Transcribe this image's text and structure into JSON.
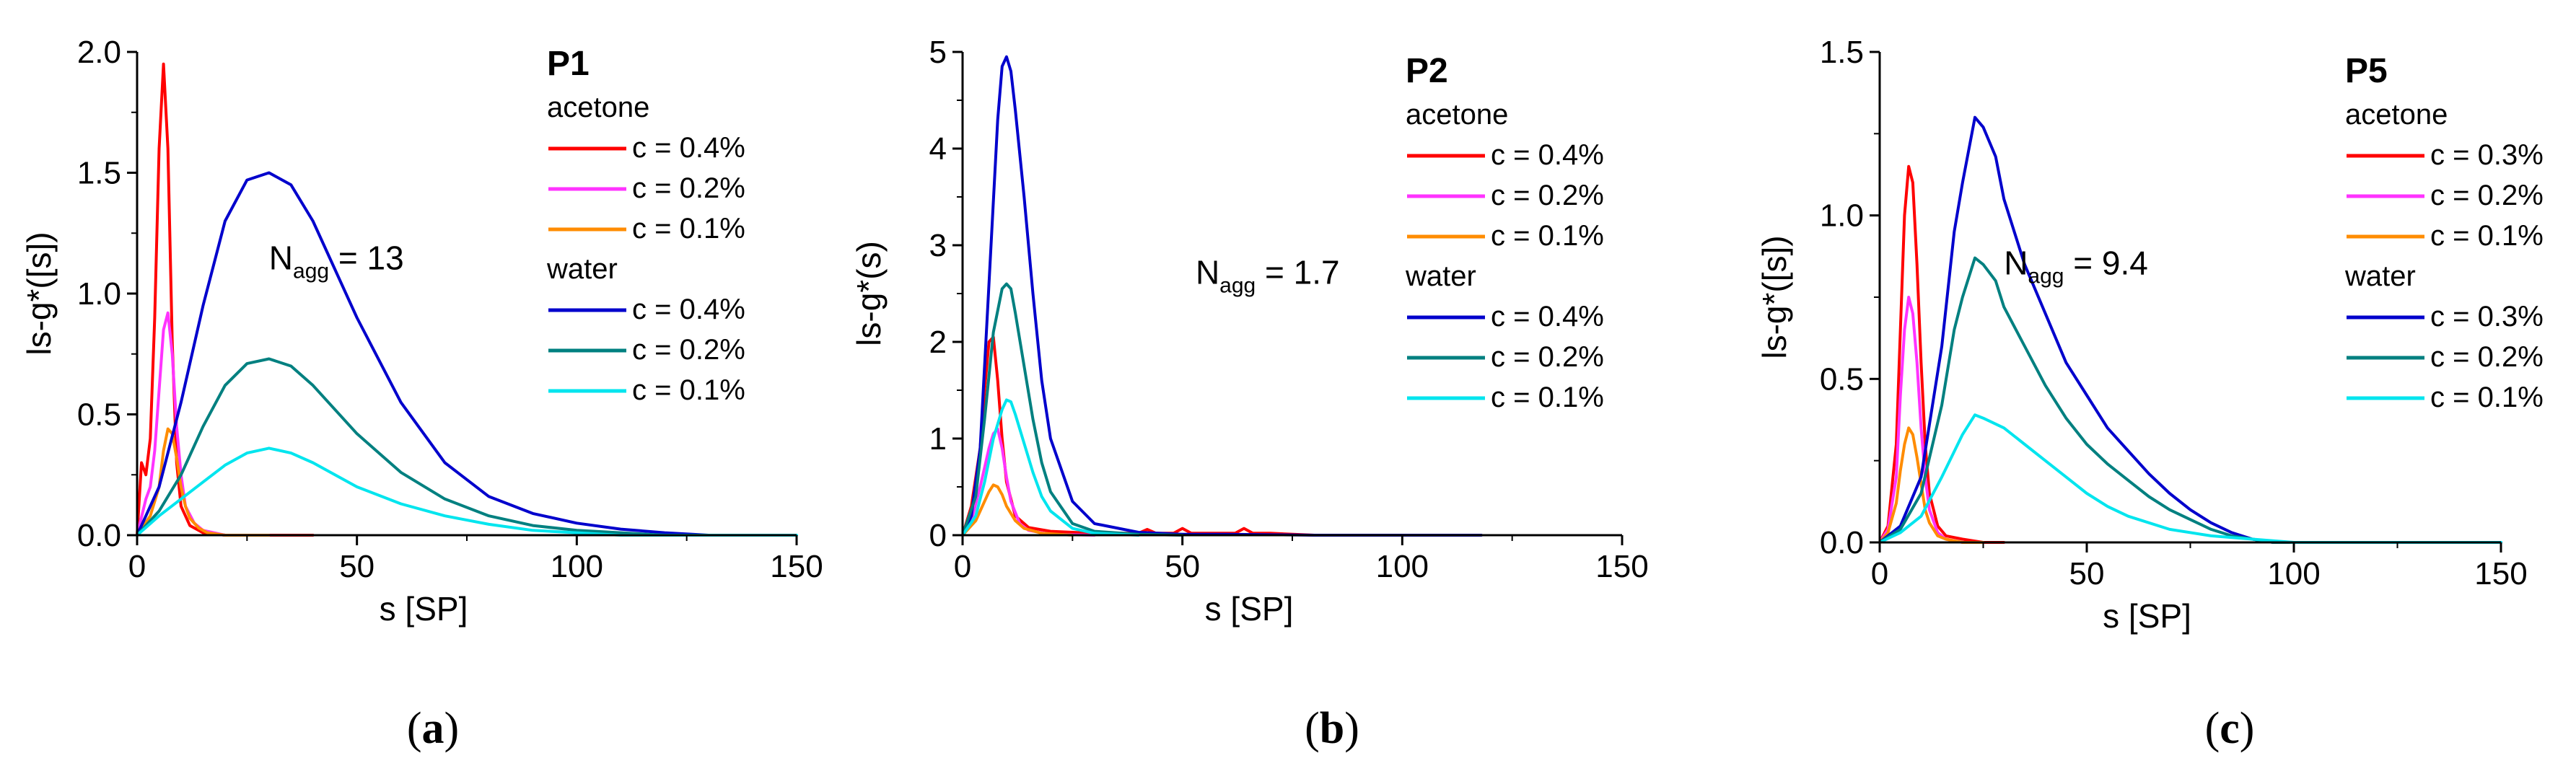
{
  "chart_data": [
    {
      "type": "line",
      "panel_label": "(a)",
      "panel_label_parts": [
        "(",
        "a",
        ")"
      ],
      "title": "P1",
      "xlabel": "s [SP]",
      "ylabel": "ls-g*([s])",
      "xlim": [
        0,
        150
      ],
      "ylim": [
        0,
        2.0
      ],
      "x_ticks": [
        0,
        50,
        100,
        150
      ],
      "x_tick_labels": [
        "0",
        "50",
        "100",
        "150"
      ],
      "y_ticks": [
        0,
        0.5,
        1.0,
        1.5,
        2.0
      ],
      "y_tick_labels": [
        "0.0",
        "0.5",
        "1.0",
        "1.5",
        "2.0"
      ],
      "annotation": {
        "main": "N",
        "sub": "agg",
        "rest": " = 13",
        "x": 30,
        "y": 1.1
      },
      "legend_groups": [
        {
          "title": "acetone",
          "series": [
            0,
            1,
            2
          ]
        },
        {
          "title": "water",
          "series": [
            3,
            4,
            5
          ]
        }
      ],
      "series": [
        {
          "name": "c = 0.4%",
          "color": "#ff0000",
          "x": [
            0,
            1,
            2,
            3,
            4,
            5,
            6,
            7,
            8,
            9,
            10,
            12,
            15,
            20,
            30,
            40
          ],
          "y": [
            0,
            0.3,
            0.25,
            0.4,
            0.9,
            1.6,
            1.95,
            1.6,
            0.8,
            0.3,
            0.12,
            0.04,
            0.01,
            0,
            0,
            0
          ]
        },
        {
          "name": "c = 0.2%",
          "color": "#ff33ff",
          "x": [
            0,
            2,
            3,
            4,
            5,
            6,
            7,
            8,
            9,
            10,
            11,
            13,
            15,
            20,
            30
          ],
          "y": [
            0,
            0.15,
            0.2,
            0.35,
            0.6,
            0.85,
            0.92,
            0.75,
            0.45,
            0.25,
            0.12,
            0.05,
            0.02,
            0,
            0
          ]
        },
        {
          "name": "c = 0.1%",
          "color": "#ff8c00",
          "x": [
            0,
            3,
            5,
            6,
            7,
            8,
            9,
            10,
            11,
            12,
            14,
            16,
            20,
            30
          ],
          "y": [
            0,
            0.08,
            0.2,
            0.35,
            0.44,
            0.42,
            0.32,
            0.2,
            0.12,
            0.07,
            0.03,
            0.01,
            0,
            0
          ]
        },
        {
          "name": "c = 0.4%",
          "color": "#0000cc",
          "x": [
            0,
            5,
            10,
            15,
            20,
            25,
            30,
            35,
            40,
            45,
            50,
            60,
            70,
            80,
            90,
            100,
            110,
            120,
            130
          ],
          "y": [
            0,
            0.2,
            0.55,
            0.95,
            1.3,
            1.47,
            1.5,
            1.45,
            1.3,
            1.1,
            0.9,
            0.55,
            0.3,
            0.16,
            0.09,
            0.05,
            0.025,
            0.01,
            0
          ]
        },
        {
          "name": "c = 0.2%",
          "color": "#008080",
          "x": [
            0,
            5,
            10,
            15,
            20,
            25,
            30,
            35,
            40,
            45,
            50,
            60,
            70,
            80,
            90,
            100,
            110,
            120
          ],
          "y": [
            0,
            0.1,
            0.25,
            0.45,
            0.62,
            0.71,
            0.73,
            0.7,
            0.62,
            0.52,
            0.42,
            0.26,
            0.15,
            0.08,
            0.04,
            0.02,
            0.01,
            0
          ]
        },
        {
          "name": "c = 0.1%",
          "color": "#00e5ee",
          "x": [
            0,
            5,
            10,
            15,
            20,
            25,
            30,
            35,
            40,
            50,
            60,
            70,
            80,
            90,
            100,
            110,
            150
          ],
          "y": [
            0,
            0.08,
            0.15,
            0.22,
            0.29,
            0.34,
            0.36,
            0.34,
            0.3,
            0.2,
            0.13,
            0.08,
            0.045,
            0.02,
            0.01,
            0,
            0
          ]
        }
      ]
    },
    {
      "type": "line",
      "panel_label": "(b)",
      "panel_label_parts": [
        "(",
        "b",
        ")"
      ],
      "title": "P2",
      "xlabel": "s [SP]",
      "ylabel": "ls-g*(s)",
      "xlim": [
        0,
        150
      ],
      "ylim": [
        0,
        5
      ],
      "x_ticks": [
        0,
        50,
        100,
        150
      ],
      "x_tick_labels": [
        "0",
        "50",
        "100",
        "150"
      ],
      "y_ticks": [
        0,
        1,
        2,
        3,
        4,
        5
      ],
      "y_tick_labels": [
        "0",
        "1",
        "2",
        "3",
        "4",
        "5"
      ],
      "annotation": {
        "main": "N",
        "sub": "agg",
        "rest": " = 1.7",
        "x": 53,
        "y": 2.6
      },
      "legend_groups": [
        {
          "title": "acetone",
          "series": [
            0,
            1,
            2
          ]
        },
        {
          "title": "water",
          "series": [
            3,
            4,
            5
          ]
        }
      ],
      "series": [
        {
          "name": "c = 0.4%",
          "color": "#ff0000",
          "x": [
            0,
            2,
            4,
            5,
            6,
            7,
            8,
            9,
            10,
            12,
            15,
            20,
            25,
            30,
            40,
            42,
            44,
            48,
            50,
            52,
            55,
            62,
            64,
            66,
            70,
            80
          ],
          "y": [
            0,
            0.3,
            0.9,
            1.5,
            2.0,
            2.05,
            1.6,
            1.0,
            0.55,
            0.2,
            0.08,
            0.04,
            0.03,
            0.02,
            0.02,
            0.06,
            0.02,
            0.02,
            0.07,
            0.02,
            0.02,
            0.02,
            0.07,
            0.02,
            0.02,
            0
          ]
        },
        {
          "name": "c = 0.2%",
          "color": "#ff33ff",
          "x": [
            0,
            2,
            4,
            6,
            7,
            8,
            9,
            10,
            11,
            13,
            15,
            20,
            30
          ],
          "y": [
            0,
            0.15,
            0.5,
            0.9,
            1.05,
            1.1,
            0.9,
            0.6,
            0.35,
            0.12,
            0.05,
            0.01,
            0
          ]
        },
        {
          "name": "c = 0.1%",
          "color": "#ff8c00",
          "x": [
            0,
            3,
            5,
            6,
            7,
            8,
            9,
            10,
            12,
            14,
            18,
            25
          ],
          "y": [
            0,
            0.15,
            0.35,
            0.45,
            0.52,
            0.5,
            0.42,
            0.3,
            0.15,
            0.07,
            0.02,
            0
          ]
        },
        {
          "name": "c = 0.4%",
          "color": "#0000cc",
          "x": [
            0,
            2,
            4,
            6,
            8,
            9,
            10,
            11,
            12,
            14,
            16,
            18,
            20,
            25,
            30,
            40,
            50,
            60,
            80,
            100,
            118
          ],
          "y": [
            0,
            0.2,
            0.9,
            2.6,
            4.3,
            4.85,
            4.95,
            4.8,
            4.4,
            3.5,
            2.5,
            1.6,
            1.0,
            0.35,
            0.12,
            0.03,
            0.01,
            0.01,
            0,
            0,
            0
          ]
        },
        {
          "name": "c = 0.2%",
          "color": "#008080",
          "x": [
            0,
            3,
            5,
            7,
            9,
            10,
            11,
            12,
            14,
            16,
            18,
            20,
            25,
            30,
            40,
            50
          ],
          "y": [
            0,
            0.4,
            1.2,
            2.1,
            2.55,
            2.6,
            2.55,
            2.3,
            1.75,
            1.2,
            0.75,
            0.45,
            0.12,
            0.04,
            0.01,
            0
          ]
        },
        {
          "name": "c = 0.1%",
          "color": "#00e5ee",
          "x": [
            0,
            3,
            5,
            7,
            9,
            10,
            11,
            12,
            14,
            16,
            18,
            20,
            25,
            30,
            40
          ],
          "y": [
            0,
            0.2,
            0.55,
            1.0,
            1.3,
            1.4,
            1.38,
            1.25,
            0.95,
            0.65,
            0.4,
            0.25,
            0.07,
            0.02,
            0
          ]
        }
      ]
    },
    {
      "type": "line",
      "panel_label": "(c)",
      "panel_label_parts": [
        "(",
        "c",
        ")"
      ],
      "title": "P5",
      "xlabel": "s [SP]",
      "ylabel": "ls-g*([s])",
      "xlim": [
        0,
        150
      ],
      "ylim": [
        0,
        1.5
      ],
      "x_ticks": [
        0,
        50,
        100,
        150
      ],
      "x_tick_labels": [
        "0",
        "50",
        "100",
        "150"
      ],
      "y_ticks": [
        0,
        0.5,
        1.0,
        1.5
      ],
      "y_tick_labels": [
        "0.0",
        "0.5",
        "1.0",
        "1.5"
      ],
      "annotation": {
        "main": "N",
        "sub": "agg",
        "rest": " = 9.4",
        "x": 30,
        "y": 0.82
      },
      "legend_groups": [
        {
          "title": "acetone",
          "series": [
            0,
            1,
            2
          ]
        },
        {
          "title": "water",
          "series": [
            3,
            4,
            5
          ]
        }
      ],
      "series": [
        {
          "name": "c = 0.3%",
          "color": "#ff0000",
          "x": [
            0,
            2,
            4,
            5,
            6,
            7,
            8,
            9,
            10,
            11,
            12,
            14,
            16,
            20,
            25,
            30
          ],
          "y": [
            0,
            0.05,
            0.3,
            0.65,
            1.0,
            1.15,
            1.1,
            0.85,
            0.55,
            0.3,
            0.15,
            0.05,
            0.02,
            0.01,
            0,
            0
          ]
        },
        {
          "name": "c = 0.2%",
          "color": "#ff33ff",
          "x": [
            0,
            2,
            4,
            5,
            6,
            7,
            8,
            9,
            10,
            11,
            12,
            14,
            16,
            20,
            25
          ],
          "y": [
            0,
            0.04,
            0.2,
            0.45,
            0.65,
            0.75,
            0.7,
            0.55,
            0.35,
            0.2,
            0.1,
            0.03,
            0.01,
            0,
            0
          ]
        },
        {
          "name": "c = 0.1%",
          "color": "#ff8c00",
          "x": [
            0,
            2,
            4,
            5,
            6,
            7,
            8,
            9,
            10,
            11,
            12,
            14,
            16,
            20,
            25
          ],
          "y": [
            0,
            0.03,
            0.12,
            0.22,
            0.3,
            0.35,
            0.33,
            0.26,
            0.18,
            0.1,
            0.06,
            0.02,
            0.01,
            0,
            0
          ]
        },
        {
          "name": "c = 0.3%",
          "color": "#0000cc",
          "x": [
            0,
            5,
            10,
            15,
            18,
            20,
            23,
            25,
            28,
            30,
            35,
            40,
            45,
            50,
            55,
            60,
            65,
            70,
            75,
            80,
            85,
            90,
            95,
            100,
            150
          ],
          "y": [
            0,
            0.05,
            0.2,
            0.6,
            0.95,
            1.1,
            1.3,
            1.27,
            1.18,
            1.05,
            0.85,
            0.7,
            0.55,
            0.45,
            0.35,
            0.28,
            0.21,
            0.15,
            0.1,
            0.06,
            0.03,
            0.01,
            0,
            0,
            0
          ]
        },
        {
          "name": "c = 0.2%",
          "color": "#008080",
          "x": [
            0,
            5,
            10,
            15,
            18,
            20,
            23,
            25,
            28,
            30,
            35,
            40,
            45,
            50,
            55,
            60,
            65,
            70,
            75,
            80,
            85,
            90,
            95,
            100
          ],
          "y": [
            0,
            0.04,
            0.15,
            0.42,
            0.65,
            0.75,
            0.87,
            0.85,
            0.8,
            0.72,
            0.6,
            0.48,
            0.38,
            0.3,
            0.24,
            0.19,
            0.14,
            0.1,
            0.07,
            0.04,
            0.02,
            0.01,
            0,
            0
          ]
        },
        {
          "name": "c = 0.1%",
          "color": "#00e5ee",
          "x": [
            0,
            5,
            10,
            15,
            20,
            23,
            25,
            30,
            35,
            40,
            45,
            50,
            55,
            60,
            70,
            80,
            90,
            100,
            150
          ],
          "y": [
            0,
            0.03,
            0.08,
            0.2,
            0.33,
            0.39,
            0.38,
            0.35,
            0.3,
            0.25,
            0.2,
            0.15,
            0.11,
            0.08,
            0.04,
            0.02,
            0.01,
            0,
            0
          ]
        }
      ]
    }
  ]
}
